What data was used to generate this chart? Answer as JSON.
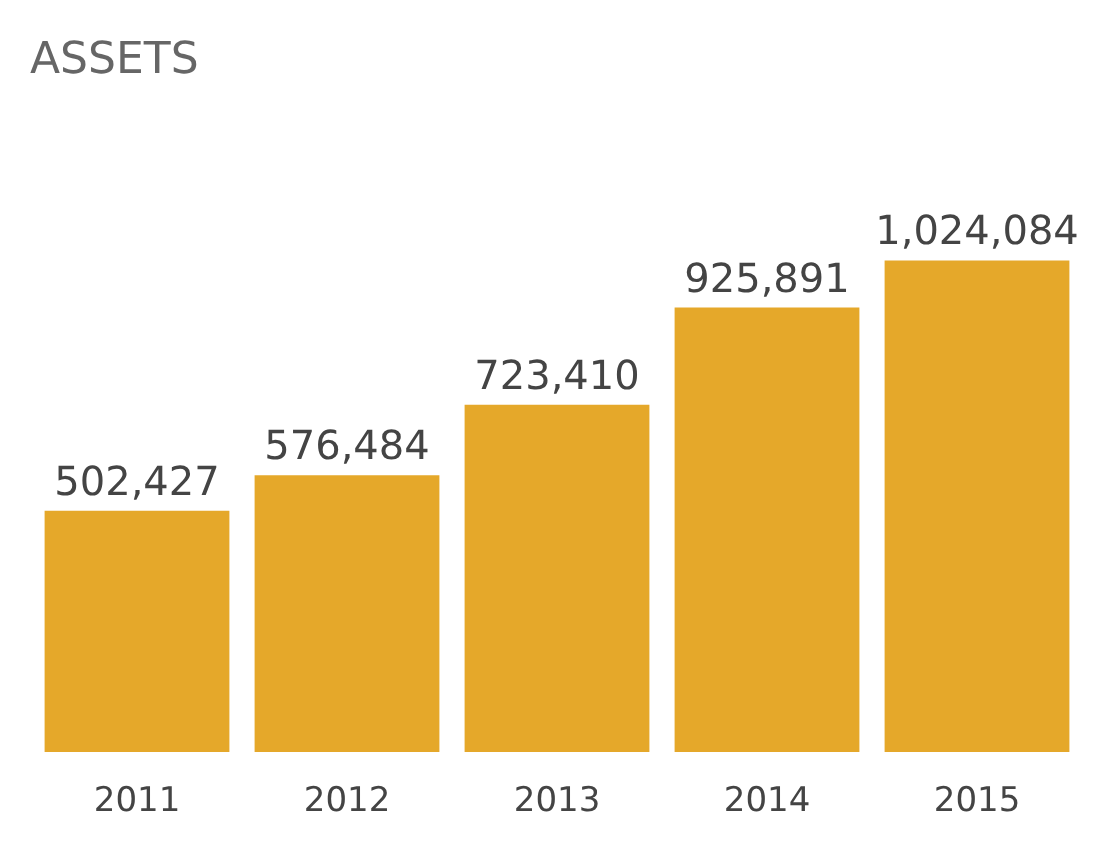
{
  "chart_data": {
    "type": "bar",
    "title": "ASSETS",
    "categories": [
      "2011",
      "2012",
      "2013",
      "2014",
      "2015"
    ],
    "values": [
      502427,
      576484,
      723410,
      925891,
      1024084
    ],
    "value_labels": [
      "502,427",
      "576,484",
      "723,410",
      "925,891",
      "1,024,084"
    ],
    "color": "#e5a82a"
  }
}
